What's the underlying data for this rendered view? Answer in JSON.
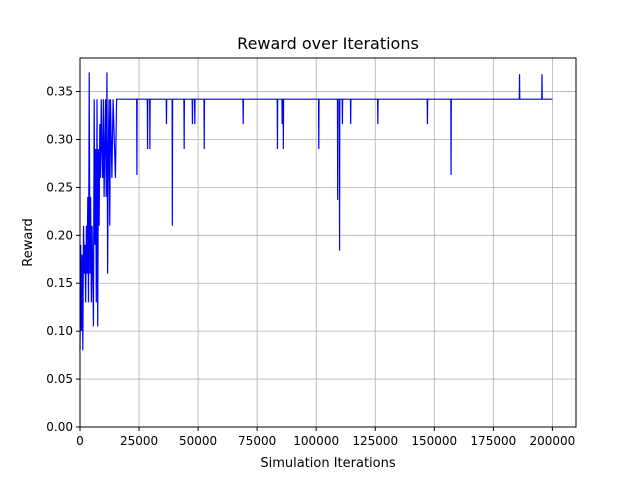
{
  "chart_data": {
    "type": "line",
    "title": "Reward over Iterations",
    "xlabel": "Simulation Iterations",
    "ylabel": "Reward",
    "xlim": [
      0,
      210000
    ],
    "ylim": [
      0,
      0.385
    ],
    "xticks": [
      0,
      25000,
      50000,
      75000,
      100000,
      125000,
      150000,
      175000,
      200000
    ],
    "yticks": [
      0.0,
      0.05,
      0.1,
      0.15,
      0.2,
      0.25,
      0.3,
      0.35
    ],
    "grid": true,
    "legend": "none",
    "series": [
      {
        "color": "#0000ff",
        "baseline": 0.342,
        "x_end": 200000,
        "points": [
          [
            0,
            0.08
          ],
          [
            300,
            0.19
          ],
          [
            600,
            0.1
          ],
          [
            900,
            0.18
          ],
          [
            1200,
            0.08
          ],
          [
            1500,
            0.21
          ],
          [
            1800,
            0.16
          ],
          [
            2100,
            0.19
          ],
          [
            2400,
            0.13
          ],
          [
            2700,
            0.21
          ],
          [
            3000,
            0.16
          ],
          [
            3300,
            0.24
          ],
          [
            3600,
            0.13
          ],
          [
            3900,
            0.37
          ],
          [
            4200,
            0.16
          ],
          [
            4500,
            0.24
          ],
          [
            4800,
            0.13
          ],
          [
            5100,
            0.21
          ],
          [
            5400,
            0.16
          ],
          [
            5700,
            0.105
          ],
          [
            6000,
            0.342
          ],
          [
            6300,
            0.19
          ],
          [
            6600,
            0.29
          ],
          [
            6900,
            0.13
          ],
          [
            7200,
            0.342
          ],
          [
            7500,
            0.105
          ],
          [
            7800,
            0.29
          ],
          [
            8100,
            0.21
          ],
          [
            8400,
            0.316
          ],
          [
            8700,
            0.26
          ],
          [
            9000,
            0.342
          ],
          [
            9300,
            0.29
          ],
          [
            9600,
            0.26
          ],
          [
            9900,
            0.342
          ],
          [
            10200,
            0.24
          ],
          [
            10500,
            0.29
          ],
          [
            10800,
            0.342
          ],
          [
            11100,
            0.24
          ],
          [
            11400,
            0.37
          ],
          [
            11700,
            0.16
          ],
          [
            12000,
            0.29
          ],
          [
            12300,
            0.342
          ],
          [
            12600,
            0.21
          ],
          [
            12900,
            0.342
          ],
          [
            13500,
            0.26
          ],
          [
            14000,
            0.342
          ],
          [
            15000,
            0.26
          ],
          [
            15500,
            0.342
          ],
          [
            24000,
            0.342
          ],
          [
            24100,
            0.263
          ],
          [
            24200,
            0.342
          ],
          [
            28500,
            0.342
          ],
          [
            28600,
            0.29
          ],
          [
            28700,
            0.342
          ],
          [
            29500,
            0.342
          ],
          [
            29600,
            0.29
          ],
          [
            29700,
            0.342
          ],
          [
            36500,
            0.342
          ],
          [
            36600,
            0.316
          ],
          [
            36700,
            0.342
          ],
          [
            39000,
            0.342
          ],
          [
            39100,
            0.21
          ],
          [
            39200,
            0.342
          ],
          [
            44000,
            0.342
          ],
          [
            44100,
            0.29
          ],
          [
            44200,
            0.342
          ],
          [
            47500,
            0.342
          ],
          [
            47600,
            0.316
          ],
          [
            47700,
            0.342
          ],
          [
            48500,
            0.342
          ],
          [
            48600,
            0.316
          ],
          [
            48700,
            0.342
          ],
          [
            52500,
            0.342
          ],
          [
            52600,
            0.29
          ],
          [
            52700,
            0.342
          ],
          [
            69000,
            0.342
          ],
          [
            69100,
            0.316
          ],
          [
            69200,
            0.342
          ],
          [
            83500,
            0.342
          ],
          [
            83600,
            0.29
          ],
          [
            83700,
            0.342
          ],
          [
            85500,
            0.342
          ],
          [
            85600,
            0.316
          ],
          [
            85700,
            0.342
          ],
          [
            86000,
            0.342
          ],
          [
            86100,
            0.29
          ],
          [
            86200,
            0.342
          ],
          [
            101000,
            0.342
          ],
          [
            101100,
            0.29
          ],
          [
            101200,
            0.342
          ],
          [
            109000,
            0.342
          ],
          [
            109100,
            0.237
          ],
          [
            109200,
            0.342
          ],
          [
            109800,
            0.342
          ],
          [
            109900,
            0.184
          ],
          [
            110000,
            0.342
          ],
          [
            111000,
            0.342
          ],
          [
            111100,
            0.316
          ],
          [
            111200,
            0.342
          ],
          [
            114500,
            0.342
          ],
          [
            114600,
            0.316
          ],
          [
            114700,
            0.342
          ],
          [
            126000,
            0.342
          ],
          [
            126100,
            0.316
          ],
          [
            126200,
            0.342
          ],
          [
            147000,
            0.342
          ],
          [
            147100,
            0.316
          ],
          [
            147200,
            0.342
          ],
          [
            157000,
            0.342
          ],
          [
            157100,
            0.263
          ],
          [
            157200,
            0.342
          ],
          [
            186000,
            0.342
          ],
          [
            186100,
            0.368
          ],
          [
            186200,
            0.342
          ],
          [
            195500,
            0.342
          ],
          [
            195600,
            0.368
          ],
          [
            195700,
            0.342
          ],
          [
            200000,
            0.342
          ]
        ]
      }
    ]
  }
}
